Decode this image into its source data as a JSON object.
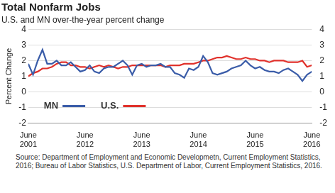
{
  "chart_data": {
    "type": "line",
    "title": "Total Nonfarm Jobs",
    "subtitle": "U.S. and MN over-the-year percent change",
    "y_label": "Percent Change",
    "source": "Source: Department of Employment and Economic Developmetn, Current Employment Statistics, 2016; Bureau of Labor Statistics, U.S. Department of Labor, Current Employment Statistics, 2016.",
    "categories": [
      "June 2001",
      null,
      null,
      null,
      null,
      null,
      null,
      null,
      null,
      null,
      null,
      null,
      "June 2012",
      null,
      null,
      null,
      null,
      null,
      null,
      null,
      null,
      null,
      null,
      null,
      "June 2013",
      null,
      null,
      null,
      null,
      null,
      null,
      null,
      null,
      null,
      null,
      null,
      "June 2014",
      null,
      null,
      null,
      null,
      null,
      null,
      null,
      null,
      null,
      null,
      null,
      "June 2015",
      null,
      null,
      null,
      null,
      null,
      null,
      null,
      null,
      null,
      null,
      null,
      "June 2016"
    ],
    "series": [
      {
        "name": "MN",
        "color": "#3a5ca8",
        "values": [
          1.8,
          1.1,
          2.0,
          2.7,
          1.8,
          1.8,
          2.0,
          1.7,
          1.7,
          1.9,
          1.6,
          1.3,
          1.4,
          1.7,
          1.3,
          1.2,
          1.5,
          1.6,
          1.6,
          1.8,
          2.0,
          1.7,
          1.1,
          1.7,
          1.8,
          1.6,
          1.7,
          1.7,
          1.8,
          1.6,
          1.6,
          1.2,
          1.1,
          0.9,
          1.5,
          1.4,
          1.6,
          2.3,
          1.9,
          1.2,
          1.1,
          1.2,
          1.3,
          1.5,
          1.6,
          1.7,
          2.0,
          1.7,
          1.5,
          1.6,
          1.4,
          1.3,
          1.3,
          1.2,
          1.4,
          1.5,
          1.3,
          1.1,
          0.7,
          1.1,
          1.3
        ]
      },
      {
        "name": "U.S.",
        "color": "#e0312b",
        "values": [
          1.0,
          1.2,
          1.3,
          1.5,
          1.5,
          1.6,
          1.8,
          1.9,
          1.9,
          1.7,
          1.7,
          1.6,
          1.6,
          1.5,
          1.6,
          1.7,
          1.6,
          1.7,
          1.6,
          1.5,
          1.6,
          1.6,
          1.7,
          1.7,
          1.7,
          1.7,
          1.7,
          1.7,
          1.7,
          1.6,
          1.7,
          1.7,
          1.7,
          1.8,
          1.8,
          1.8,
          1.9,
          2.0,
          2.0,
          2.1,
          2.2,
          2.2,
          2.3,
          2.2,
          2.1,
          2.1,
          2.2,
          2.1,
          2.1,
          2.0,
          2.0,
          1.9,
          2.0,
          2.0,
          2.0,
          1.9,
          1.9,
          1.9,
          2.0,
          1.6,
          1.7
        ]
      }
    ],
    "ylim": [
      -2,
      4
    ],
    "yticks": [
      -2,
      -1,
      0,
      1,
      2,
      3,
      4
    ],
    "y2lim": [
      -2,
      4
    ],
    "y2ticks": [
      -2,
      -1,
      0,
      1,
      2,
      3,
      4
    ],
    "grid": true,
    "legend": "lower left"
  }
}
